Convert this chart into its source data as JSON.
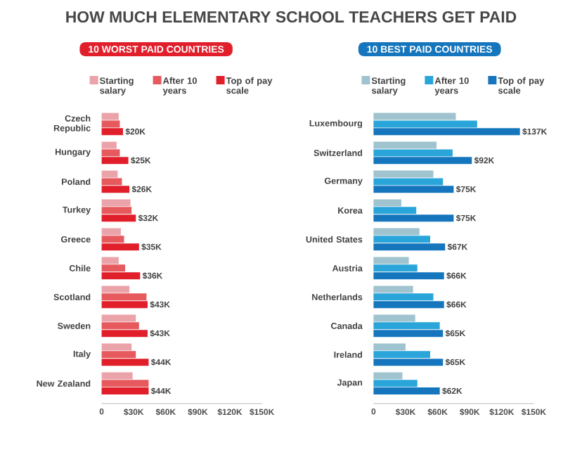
{
  "chart_data": [
    {
      "type": "bar",
      "orientation": "horizontal",
      "title": "HOW MUCH ELEMENTARY SCHOOL TEACHERS GET PAID",
      "subtitle": "10 WORST PAID COUNTRIES",
      "legend": "top",
      "categories": [
        "Czech Republic",
        "Hungary",
        "Poland",
        "Turkey",
        "Greece",
        "Chile",
        "Scotland",
        "Sweden",
        "Italy",
        "New Zealand"
      ],
      "xlim": [
        0,
        150
      ],
      "xticks": [
        0,
        {
          "value": 30,
          "label": "$30K"
        },
        {
          "value": 60,
          "label": "$60K"
        },
        {
          "value": 90,
          "label": "$90K"
        },
        {
          "value": 120,
          "label": "$120K"
        },
        {
          "value": 150,
          "label": "$150K"
        }
      ],
      "series": [
        {
          "name": "Starting salary",
          "color": "#eba3aa",
          "values": [
            16,
            14,
            15,
            27,
            18,
            16,
            26,
            32,
            28,
            29
          ]
        },
        {
          "name": "After 10 years",
          "color": "#e65a5e",
          "values": [
            17,
            17,
            19,
            28,
            21,
            22,
            42,
            35,
            32,
            44
          ]
        },
        {
          "name": "Top of pay scale",
          "color": "#e01f2b",
          "values": [
            20,
            25,
            26,
            32,
            35,
            36,
            43,
            43,
            44,
            44
          ],
          "value_labels": [
            "$20K",
            "$25K",
            "$26K",
            "$32K",
            "$35K",
            "$36K",
            "$43K",
            "$43K",
            "$44K",
            "$44K"
          ]
        }
      ]
    },
    {
      "type": "bar",
      "orientation": "horizontal",
      "subtitle": "10 BEST PAID COUNTRIES",
      "legend": "top",
      "categories": [
        "Luxembourg",
        "Switzerland",
        "Germany",
        "Korea",
        "United States",
        "Austria",
        "Netherlands",
        "Canada",
        "Ireland",
        "Japan"
      ],
      "xlim": [
        0,
        150
      ],
      "xticks": [
        0,
        {
          "value": 30,
          "label": "$30K"
        },
        {
          "value": 60,
          "label": "$60K"
        },
        {
          "value": 90,
          "label": "$90K"
        },
        {
          "value": 120,
          "label": "$120K"
        },
        {
          "value": 150,
          "label": "$150K"
        }
      ],
      "series": [
        {
          "name": "Starting salary",
          "color": "#9fc3cf",
          "values": [
            77,
            59,
            56,
            26,
            43,
            33,
            37,
            39,
            30,
            27
          ]
        },
        {
          "name": "After 10 years",
          "color": "#2aa5da",
          "values": [
            97,
            74,
            65,
            40,
            53,
            41,
            56,
            62,
            53,
            41
          ]
        },
        {
          "name": "Top of pay scale",
          "color": "#1576bd",
          "values": [
            137,
            92,
            75,
            75,
            67,
            66,
            66,
            65,
            65,
            62
          ],
          "value_labels": [
            "$137K",
            "$92K",
            "$75K",
            "$75K",
            "$67K",
            "$66K",
            "$66K",
            "$65K",
            "$65K",
            "$62K"
          ]
        }
      ]
    }
  ]
}
